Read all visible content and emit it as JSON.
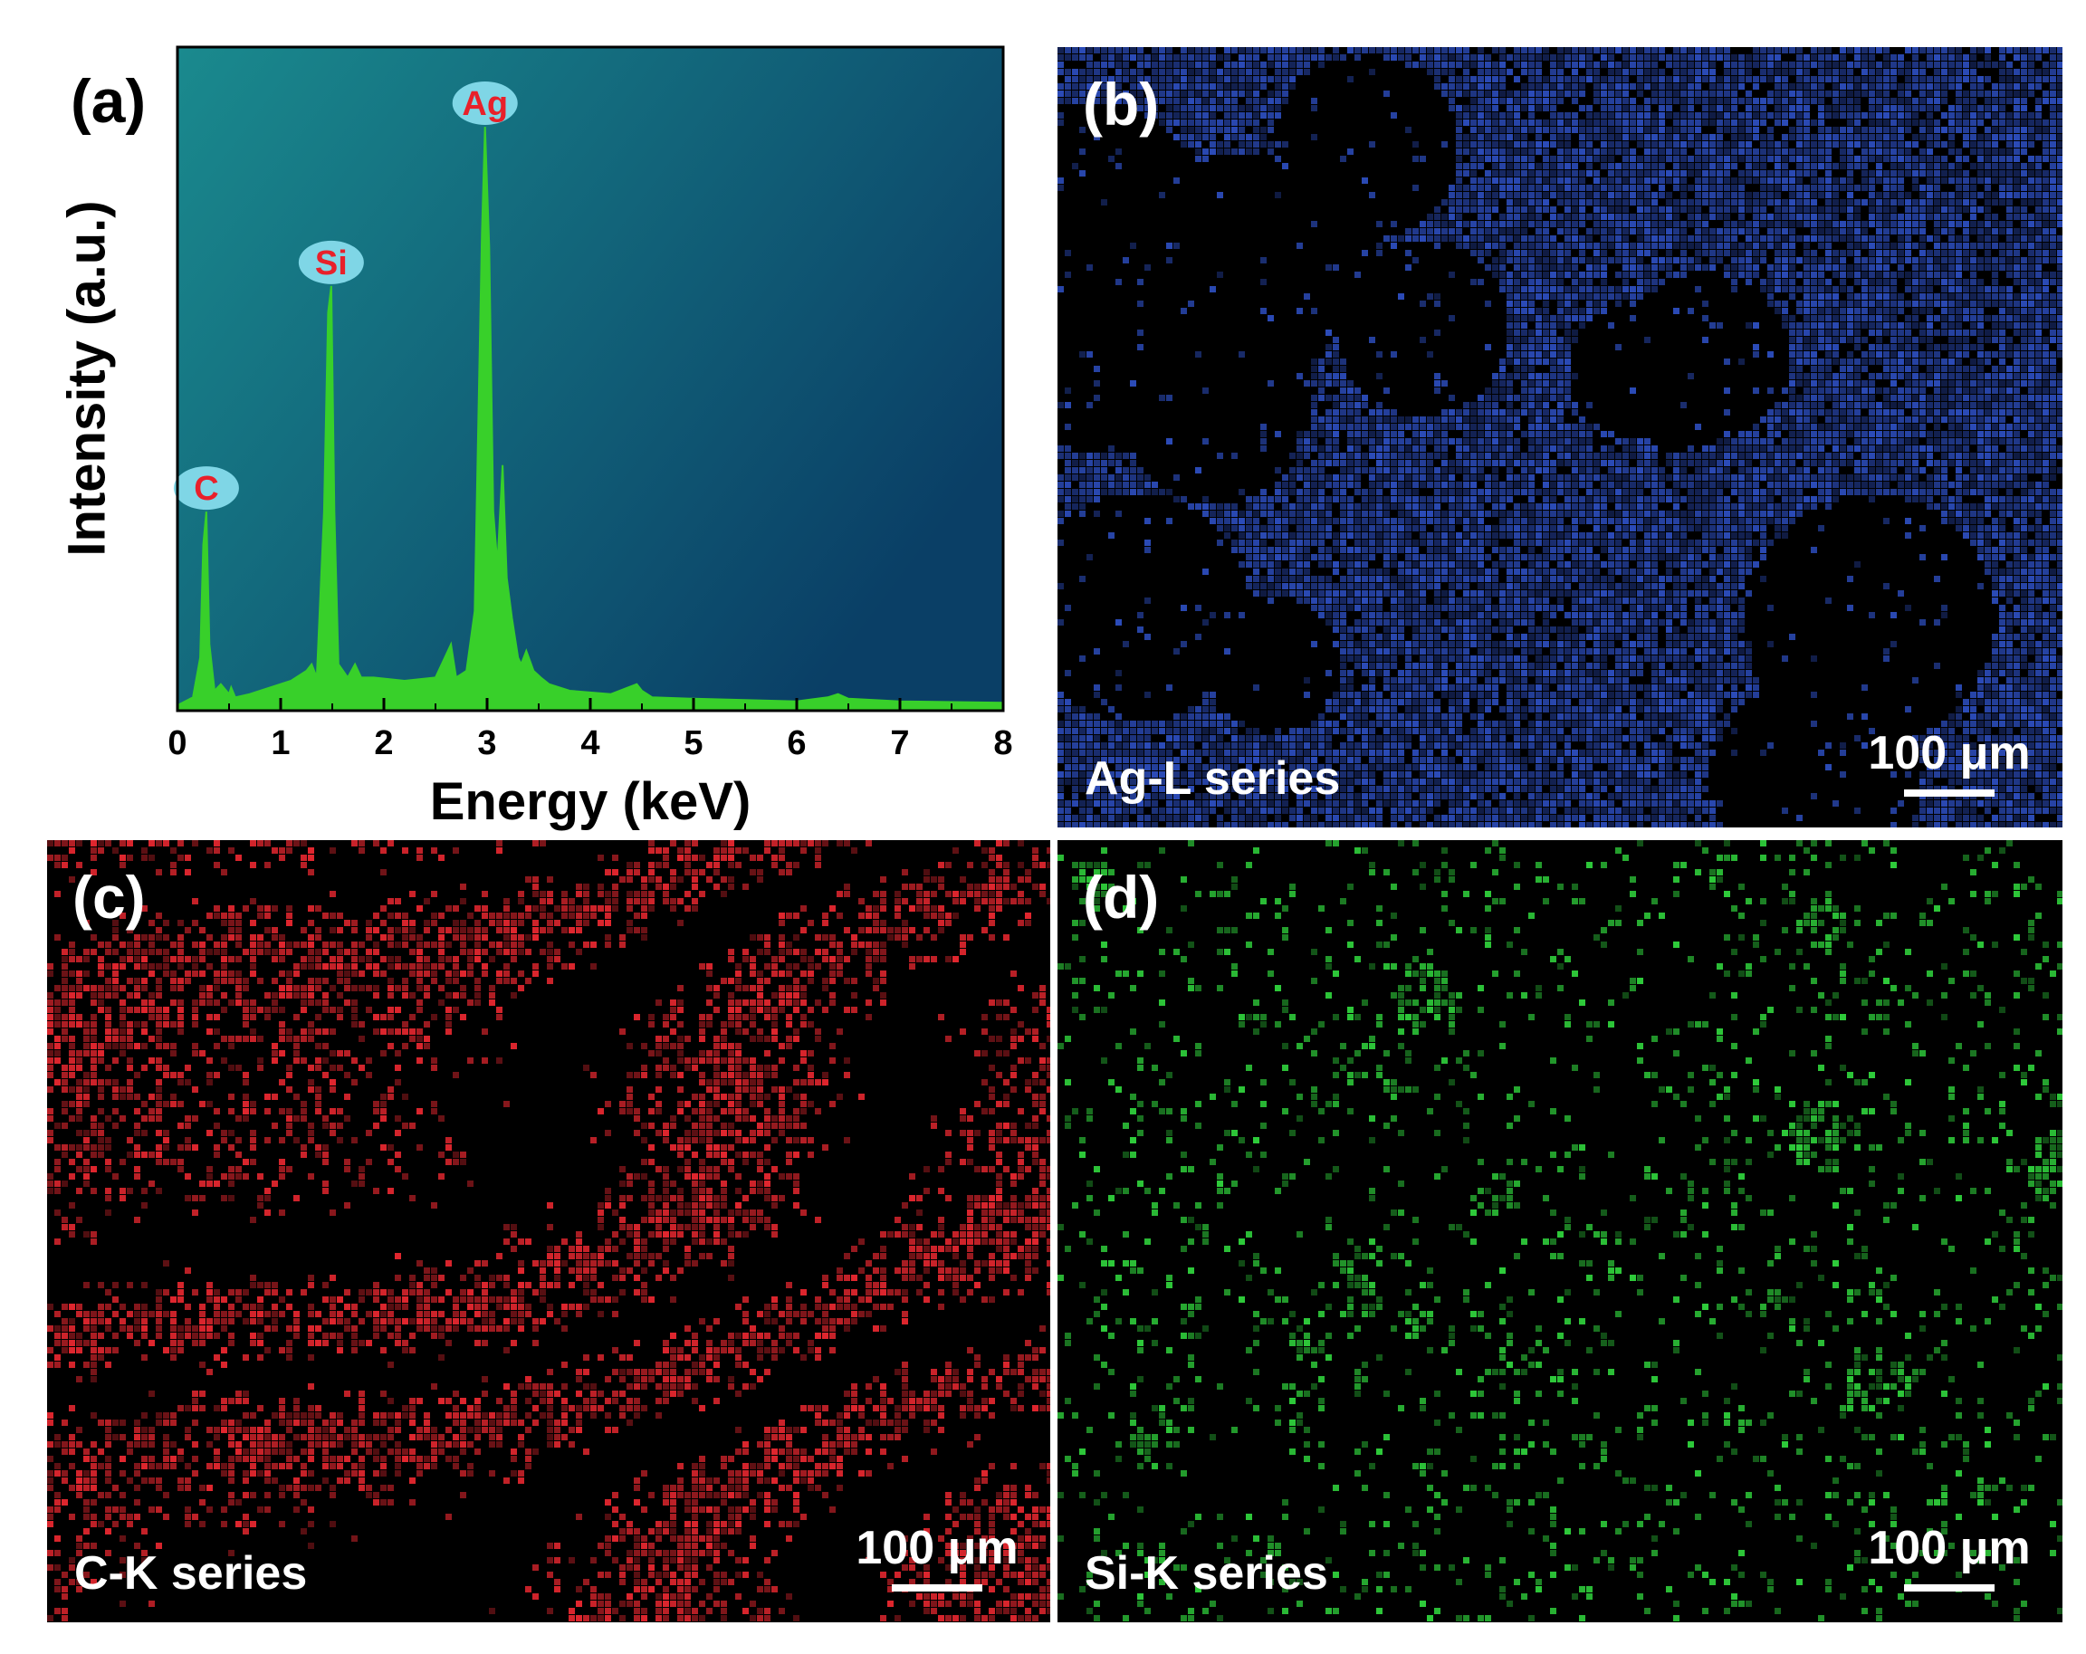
{
  "panel_a": {
    "label": "(a)",
    "colors": {
      "spectrum": "#38d02a",
      "bubble": "#7fd6e6",
      "bubble_text": "#e8202a",
      "bg_light": "#1a8a8e",
      "bg_dark": "#0a3f66"
    }
  },
  "chart_data": [
    {
      "type": "area",
      "title": "",
      "xlabel": "Energy (keV)",
      "ylabel": "Intensity (a.u.)",
      "xlim": [
        0,
        8
      ],
      "ylim": [
        0,
        100
      ],
      "x_ticks": [
        "0",
        "1",
        "2",
        "3",
        "4",
        "5",
        "6",
        "7",
        "8"
      ],
      "grid": false,
      "y_tick_labels_shown": false,
      "series": [
        {
          "x": [
            0.0,
            0.15,
            0.22,
            0.25,
            0.28,
            0.31,
            0.36,
            0.42,
            0.5,
            0.52,
            0.56,
            0.7,
            0.9,
            1.1,
            1.25,
            1.3,
            1.35,
            1.42,
            1.46,
            1.49,
            1.52,
            1.56,
            1.65,
            1.72,
            1.78,
            1.9,
            2.2,
            2.5,
            2.62,
            2.65,
            2.7,
            2.8,
            2.88,
            2.95,
            2.98,
            3.02,
            3.06,
            3.1,
            3.15,
            3.19,
            3.24,
            3.3,
            3.33,
            3.38,
            3.45,
            3.52,
            3.6,
            3.8,
            4.2,
            4.45,
            4.5,
            4.6,
            5.0,
            5.5,
            6.0,
            6.3,
            6.4,
            6.5,
            7.0,
            8.0
          ],
          "y": [
            0.8,
            2.0,
            8,
            25,
            30,
            10,
            3,
            4,
            2.5,
            3.5,
            2,
            2.5,
            3.5,
            4.5,
            6,
            7,
            5,
            30,
            60,
            64,
            30,
            7,
            5,
            7,
            5,
            5,
            4.5,
            5,
            9,
            10,
            5,
            6,
            15,
            72,
            88,
            70,
            30,
            22,
            37,
            20,
            14,
            8,
            7,
            9,
            6,
            5,
            4,
            3,
            2.5,
            4,
            3,
            2,
            1.8,
            1.6,
            1.4,
            2.0,
            2.5,
            1.8,
            1.4,
            1.2
          ]
        }
      ],
      "annotations": [
        {
          "text": "C",
          "x": 0.28,
          "y": 30
        },
        {
          "text": "Si",
          "x": 1.49,
          "y": 64
        },
        {
          "text": "Ag",
          "x": 2.98,
          "y": 88
        }
      ]
    }
  ],
  "maps": [
    {
      "id": "b",
      "letter": "(b)",
      "series": "Ag-L series",
      "scale": "100 μm",
      "color": "#2b4bb8"
    },
    {
      "id": "c",
      "letter": "(c)",
      "series": "C-K series",
      "scale": "100 μm",
      "color": "#e0262e"
    },
    {
      "id": "d",
      "letter": "(d)",
      "series": "Si-K series",
      "scale": "100 μm",
      "color": "#2ecb3a"
    }
  ]
}
